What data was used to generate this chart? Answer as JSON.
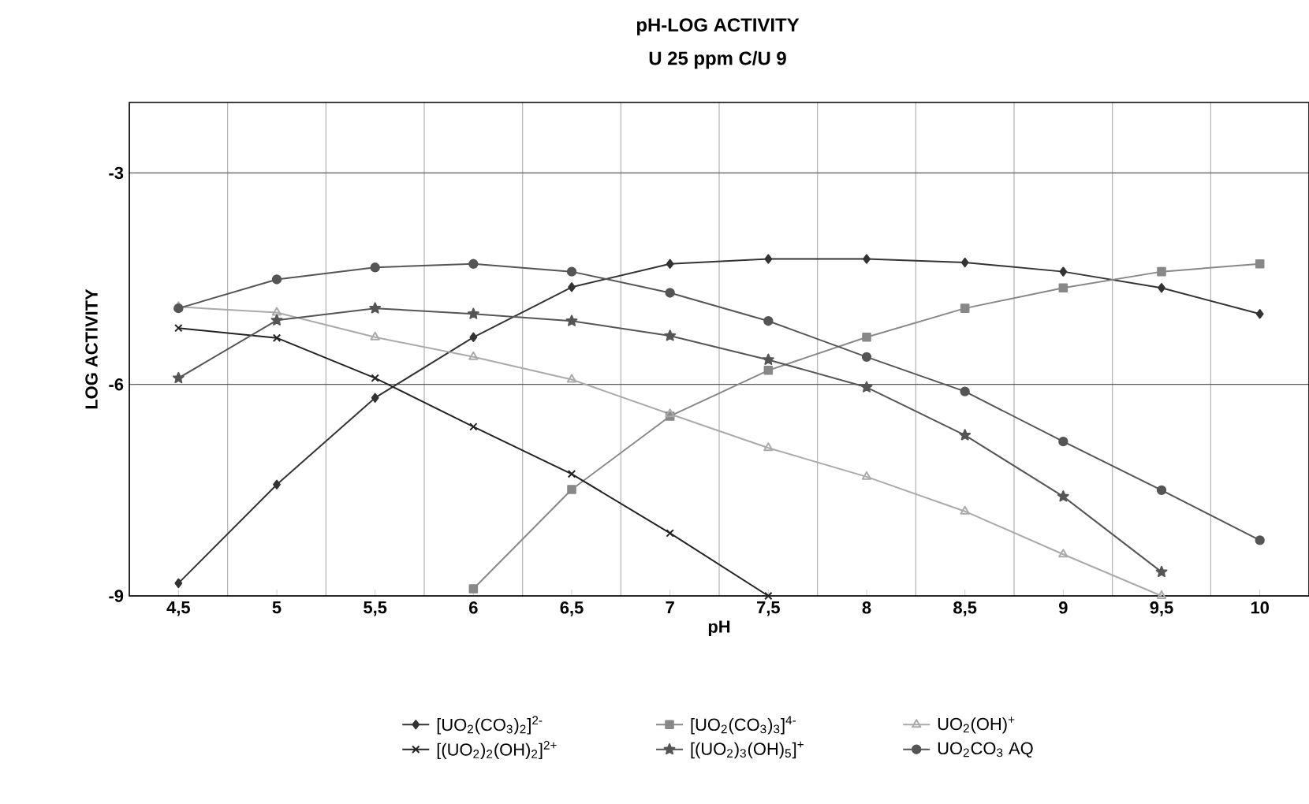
{
  "chart_data": {
    "type": "line",
    "title": "pH-LOG ACTIVITY",
    "subtitle": "U 25 ppm C/U 9",
    "xlabel": "pH",
    "ylabel": "LOG ACTIVITY",
    "categories": [
      "4,5",
      "5",
      "5,5",
      "6",
      "6,5",
      "7",
      "7,5",
      "8",
      "8,5",
      "9",
      "9,5",
      "10"
    ],
    "ylim": [
      -9,
      -2
    ],
    "yticks": [
      -3,
      -6,
      -9
    ],
    "grid": true,
    "legend": "bottom",
    "series": [
      {
        "name": "[UO$_{2}$(CO$_{3}$)$_{2}$]$^{2-}$",
        "color": "#333333",
        "marker": "diamond",
        "values": [
          -8.82,
          -7.42,
          -6.19,
          -5.33,
          -4.62,
          -4.29,
          -4.22,
          -4.22,
          -4.27,
          -4.4,
          -4.63,
          -5.0
        ]
      },
      {
        "name": "[UO$_{2}$(CO$_{3}$)$_{3}$]$^{4-}$",
        "color": "#888888",
        "marker": "square",
        "values": [
          null,
          null,
          null,
          -8.9,
          -7.49,
          -6.45,
          -5.8,
          -5.33,
          -4.92,
          -4.63,
          -4.4,
          -4.29
        ]
      },
      {
        "name": "UO$_{2}$(OH)$^{+}$",
        "color": "#aaaaaa",
        "marker": "triangle",
        "values": [
          -4.9,
          -4.98,
          -5.33,
          -5.61,
          -5.93,
          -6.42,
          -6.9,
          -7.31,
          -7.8,
          -8.41,
          -9.0,
          null
        ]
      },
      {
        "name": "[(UO$_{2}$)$_{2}$(OH)$_{2}$]$^{2+}$",
        "color": "#222222",
        "marker": "cross",
        "values": [
          -5.2,
          -5.34,
          -5.91,
          -6.6,
          -7.27,
          -8.11,
          -9.0,
          null,
          null,
          null,
          null,
          null
        ]
      },
      {
        "name": "[(UO$_{2}$)$_{3}$(OH)$_{5}$]$^{+}$",
        "color": "#555555",
        "marker": "star",
        "values": [
          -5.91,
          -5.09,
          -4.92,
          -5.0,
          -5.1,
          -5.31,
          -5.65,
          -6.04,
          -6.72,
          -7.59,
          -8.66,
          null
        ]
      },
      {
        "name": "UO$_{2}$CO$_{3}$ AQ",
        "color": "#555555",
        "marker": "circle",
        "values": [
          -4.92,
          -4.51,
          -4.34,
          -4.29,
          -4.4,
          -4.7,
          -5.1,
          -5.61,
          -6.1,
          -6.81,
          -7.5,
          -8.21
        ]
      }
    ]
  }
}
